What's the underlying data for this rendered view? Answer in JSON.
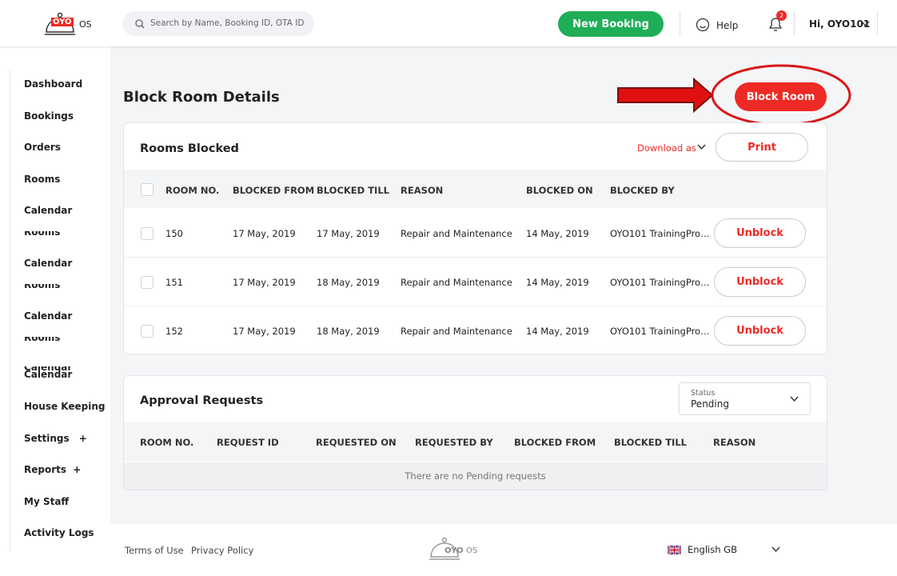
{
  "header": {
    "logo": "OYO",
    "logo_suffix": "OS",
    "search_placeholder": "Search by Name, Booking ID, OTA ID",
    "new_booking": "New Booking",
    "help": "Help",
    "notifications": 2,
    "user": "Hi, OYO101"
  },
  "sidebar": [
    {
      "label": "Dashboard"
    },
    {
      "label": "Bookings"
    },
    {
      "label": "Orders"
    },
    {
      "label": "Rooms"
    },
    {
      "label": "Calendar"
    },
    {
      "label": "Rooms"
    },
    {
      "label": "Calendar"
    },
    {
      "label": "Rooms"
    },
    {
      "label": "Calendar"
    },
    {
      "label": "Rooms"
    },
    {
      "label": "Calendar"
    },
    {
      "label": "Calendar"
    },
    {
      "label": "House Keeping",
      "expand": "+"
    },
    {
      "label": "Settings",
      "expand": "+"
    },
    {
      "label": "Reports",
      "expand": "+"
    },
    {
      "label": "My Staff"
    },
    {
      "label": "Activity Logs"
    }
  ],
  "page": {
    "title": "Block Room Details",
    "block_room": "Block Room"
  },
  "rooms_blocked": {
    "title": "Rooms Blocked",
    "download": "Download as",
    "print": "Print",
    "columns": [
      "ROOM NO.",
      "BLOCKED FROM",
      "BLOCKED TILL",
      "REASON",
      "BLOCKED ON",
      "BLOCKED BY"
    ],
    "rows": [
      [
        "150",
        "17 May, 2019",
        "17 May, 2019",
        "Repair and Maintenance",
        "14 May, 2019",
        "OYO101 TrainingPro…"
      ],
      [
        "151",
        "17 May, 2019",
        "18 May, 2019",
        "Repair and Maintenance",
        "14 May, 2019",
        "OYO101 TrainingPro…"
      ],
      [
        "152",
        "17 May, 2019",
        "18 May, 2019",
        "Repair and Maintenance",
        "14 May, 2019",
        "OYO101 TrainingPro…"
      ]
    ],
    "action": "Unblock"
  },
  "approval_requests": {
    "title": "Approval Requests",
    "status_label": "Status",
    "status_value": "Pending",
    "columns": [
      "ROOM NO.",
      "REQUEST ID",
      "REQUESTED ON",
      "REQUESTED BY",
      "BLOCKED FROM",
      "BLOCKED TILL",
      "REASON"
    ],
    "empty": "There are no Pending requests"
  },
  "footer": {
    "terms": "Terms of Use",
    "privacy": "Privacy Policy",
    "logo": "OYO",
    "logo_suffix": "OS",
    "language": "English GB"
  }
}
